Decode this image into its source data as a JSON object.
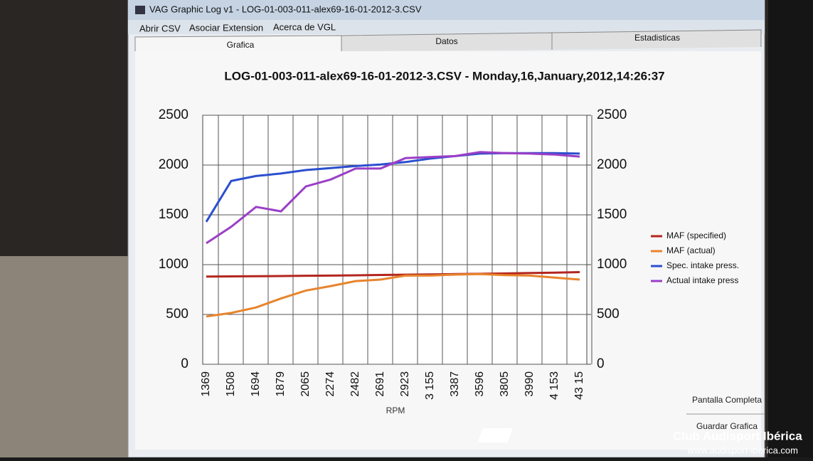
{
  "window": {
    "title": "VAG Graphic Log  v1 -  LOG-01-003-011-alex69-16-01-2012-3.CSV",
    "menu": [
      "Abrir CSV",
      "Asociar Extension",
      "Acerca de VGL"
    ],
    "tabs": [
      "Grafica",
      "Datos",
      "Estadisticas"
    ],
    "buttons": [
      "Pantalla Completa",
      "Guardar Grafica"
    ]
  },
  "watermark": {
    "name": "Club Audisport Ibérica",
    "url": "www.audisport-iberica.com"
  },
  "chart_data": {
    "type": "line",
    "title": "LOG-01-003-011-alex69-16-01-2012-3.CSV - Monday,16,January,2012,14:26:37",
    "x_label": "RPM",
    "categories": [
      "1369",
      "1508",
      "1694",
      "1879",
      "2065",
      "2274",
      "2482",
      "2691",
      "2923",
      "3 155",
      "3387",
      "3596",
      "3805",
      "3990",
      "4 153",
      "43 15"
    ],
    "series": [
      {
        "name": "MAF (specified)",
        "color": "#b3261e",
        "values": [
          880,
          882,
          884,
          886,
          888,
          890,
          893,
          896,
          899,
          902,
          905,
          908,
          912,
          916,
          920,
          925
        ]
      },
      {
        "name": "MAF (actual)",
        "color": "#e8842c",
        "values": [
          480,
          515,
          570,
          660,
          740,
          785,
          835,
          850,
          890,
          890,
          900,
          905,
          895,
          890,
          870,
          850
        ]
      },
      {
        "name": "Spec. intake press.",
        "color": "#2b4fcf",
        "axis": "y2",
        "values": [
          1430,
          1840,
          1890,
          1915,
          1950,
          1970,
          1990,
          2005,
          2030,
          2065,
          2090,
          2115,
          2120,
          2120,
          2120,
          2115
        ]
      },
      {
        "name": "Actual intake press",
        "color": "#9b3fc6",
        "axis": "y2",
        "values": [
          1215,
          1380,
          1580,
          1535,
          1785,
          1855,
          1965,
          1965,
          2070,
          2080,
          2090,
          2130,
          2120,
          2115,
          2105,
          2085
        ]
      }
    ],
    "ylim": [
      0,
      2500
    ],
    "yticks": [
      0,
      500,
      1000,
      1500,
      2000,
      2500
    ],
    "y2lim": [
      0,
      2500
    ],
    "y2ticks": [
      0,
      500,
      1000,
      1500,
      2000,
      2500
    ],
    "grid": true,
    "legend": "right"
  }
}
